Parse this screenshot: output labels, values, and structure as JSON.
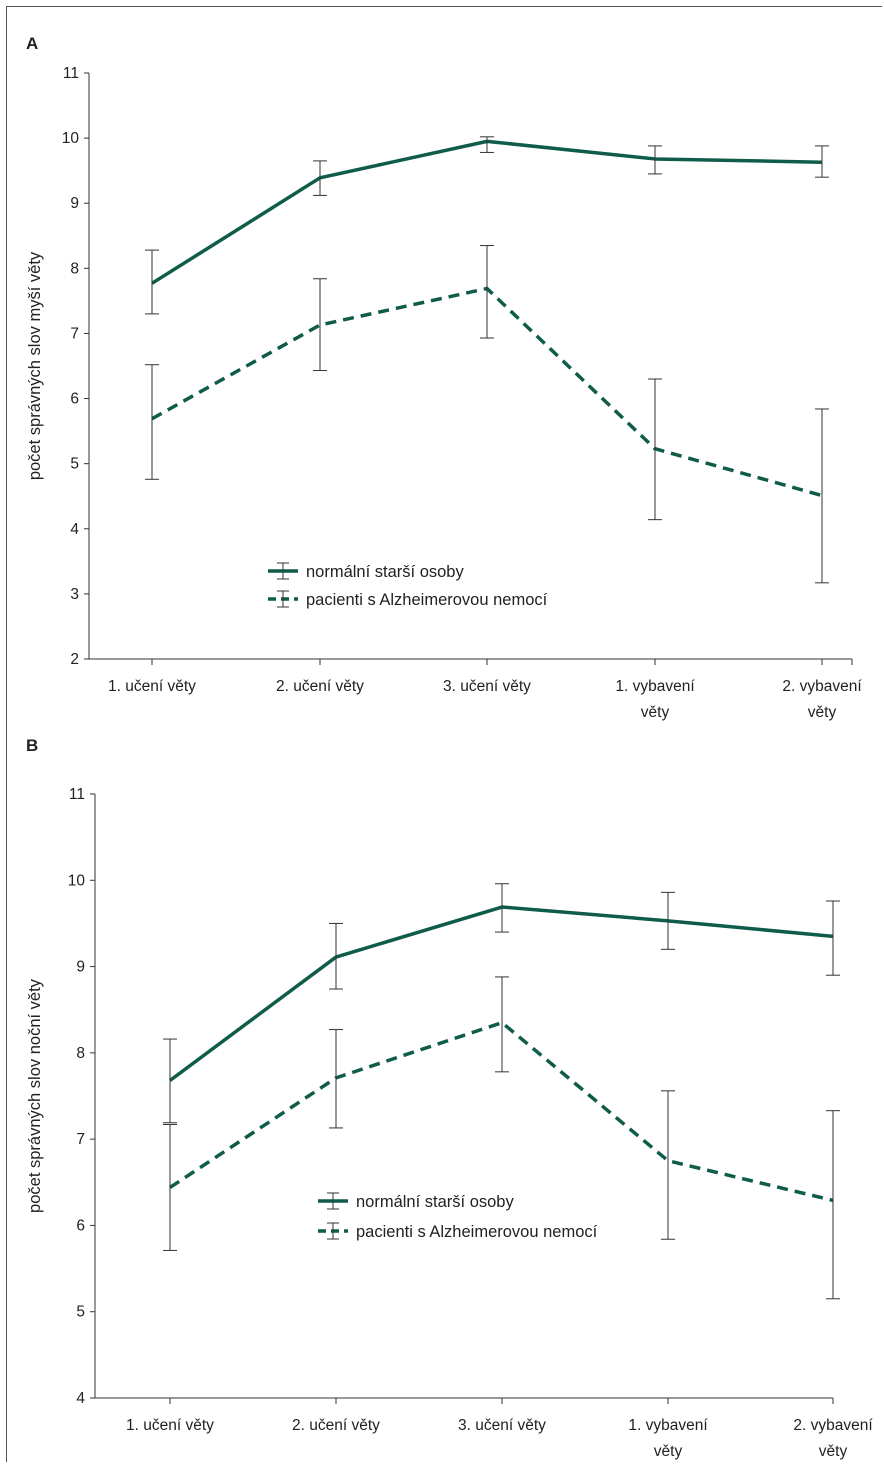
{
  "figure": {
    "color": "#0f5c4a",
    "axis_color": "#333333"
  },
  "chart_data": [
    {
      "panel": "A",
      "type": "line",
      "ylabel": "počet správných slov myší věty",
      "xlabel": "",
      "ylim": [
        2,
        11
      ],
      "yticks": [
        2,
        3,
        4,
        5,
        6,
        7,
        8,
        9,
        10,
        11
      ],
      "categories": [
        [
          "1. učení věty"
        ],
        [
          "2. učení věty"
        ],
        [
          "3. učení věty"
        ],
        [
          "1. vybavení",
          "věty"
        ],
        [
          "2. vybavení",
          "věty"
        ]
      ],
      "series": [
        {
          "name": "normální starší osoby",
          "style": "solid",
          "values": [
            7.77,
            9.39,
            9.95,
            9.68,
            9.63
          ],
          "err_low": [
            7.3,
            9.12,
            9.78,
            9.45,
            9.4
          ],
          "err_high": [
            8.28,
            9.65,
            10.02,
            9.88,
            9.88
          ]
        },
        {
          "name": "pacienti s Alzheimerovou nemocí",
          "style": "dashed",
          "values": [
            5.69,
            7.13,
            7.69,
            5.23,
            4.51
          ],
          "err_low": [
            4.76,
            6.43,
            6.93,
            4.14,
            3.17
          ],
          "err_high": [
            6.52,
            7.84,
            8.35,
            6.3,
            5.84
          ]
        }
      ],
      "legend": {
        "position": "center-bottom"
      },
      "grid": false
    },
    {
      "panel": "B",
      "type": "line",
      "ylabel": "počet správných slov noční věty",
      "xlabel": "",
      "ylim": [
        4,
        11
      ],
      "yticks": [
        4,
        5,
        6,
        7,
        8,
        9,
        10,
        11
      ],
      "categories": [
        [
          "1. učení věty"
        ],
        [
          "2. učení věty"
        ],
        [
          "3. učení věty"
        ],
        [
          "1. vybavení",
          "věty"
        ],
        [
          "2. vybavení",
          "věty"
        ]
      ],
      "series": [
        {
          "name": "normální starší osoby",
          "style": "solid",
          "values": [
            7.68,
            9.11,
            9.69,
            9.53,
            9.35
          ],
          "err_low": [
            7.19,
            8.74,
            9.4,
            9.2,
            8.9
          ],
          "err_high": [
            8.16,
            9.5,
            9.96,
            9.86,
            9.76
          ]
        },
        {
          "name": "pacienti s Alzheimerovou nemocí",
          "style": "dashed",
          "values": [
            6.44,
            7.71,
            8.35,
            6.75,
            6.29
          ],
          "err_low": [
            5.71,
            7.13,
            7.78,
            5.84,
            5.15
          ],
          "err_high": [
            7.17,
            8.27,
            8.88,
            7.56,
            7.33
          ]
        }
      ],
      "legend": {
        "position": "center-bottom"
      },
      "grid": false
    }
  ]
}
